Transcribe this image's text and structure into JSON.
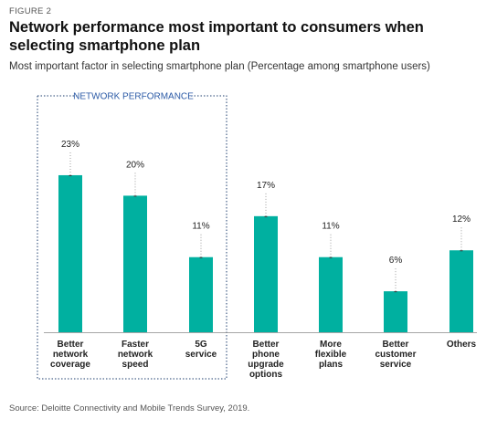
{
  "figure_label": "FIGURE 2",
  "title": "Network performance most important to consumers when selecting smartphone plan",
  "subtitle": "Most important factor in selecting smartphone plan (Percentage among smartphone users)",
  "source": "Source: Deloitte Connectivity and Mobile Trends Survey, 2019.",
  "colors": {
    "bar": "#00b0a0",
    "group_box": "#1f3f6f",
    "group_label": "#2b5aa6"
  },
  "chart_data": {
    "type": "bar",
    "group_label": "NETWORK PERFORMANCE",
    "categories": [
      [
        "Better",
        "network",
        "coverage"
      ],
      [
        "Faster",
        "network",
        "speed"
      ],
      [
        "5G",
        "service"
      ],
      [
        "Better",
        "phone",
        "upgrade",
        "options"
      ],
      [
        "More",
        "flexible",
        "plans"
      ],
      [
        "Better",
        "customer",
        "service"
      ],
      [
        "Others"
      ]
    ],
    "values": [
      23,
      20,
      11,
      17,
      11,
      6,
      12
    ],
    "value_labels": [
      "23%",
      "20%",
      "11%",
      "17%",
      "11%",
      "6%",
      "12%"
    ],
    "ylim": [
      0,
      25
    ],
    "grid": false,
    "legend": "none"
  }
}
